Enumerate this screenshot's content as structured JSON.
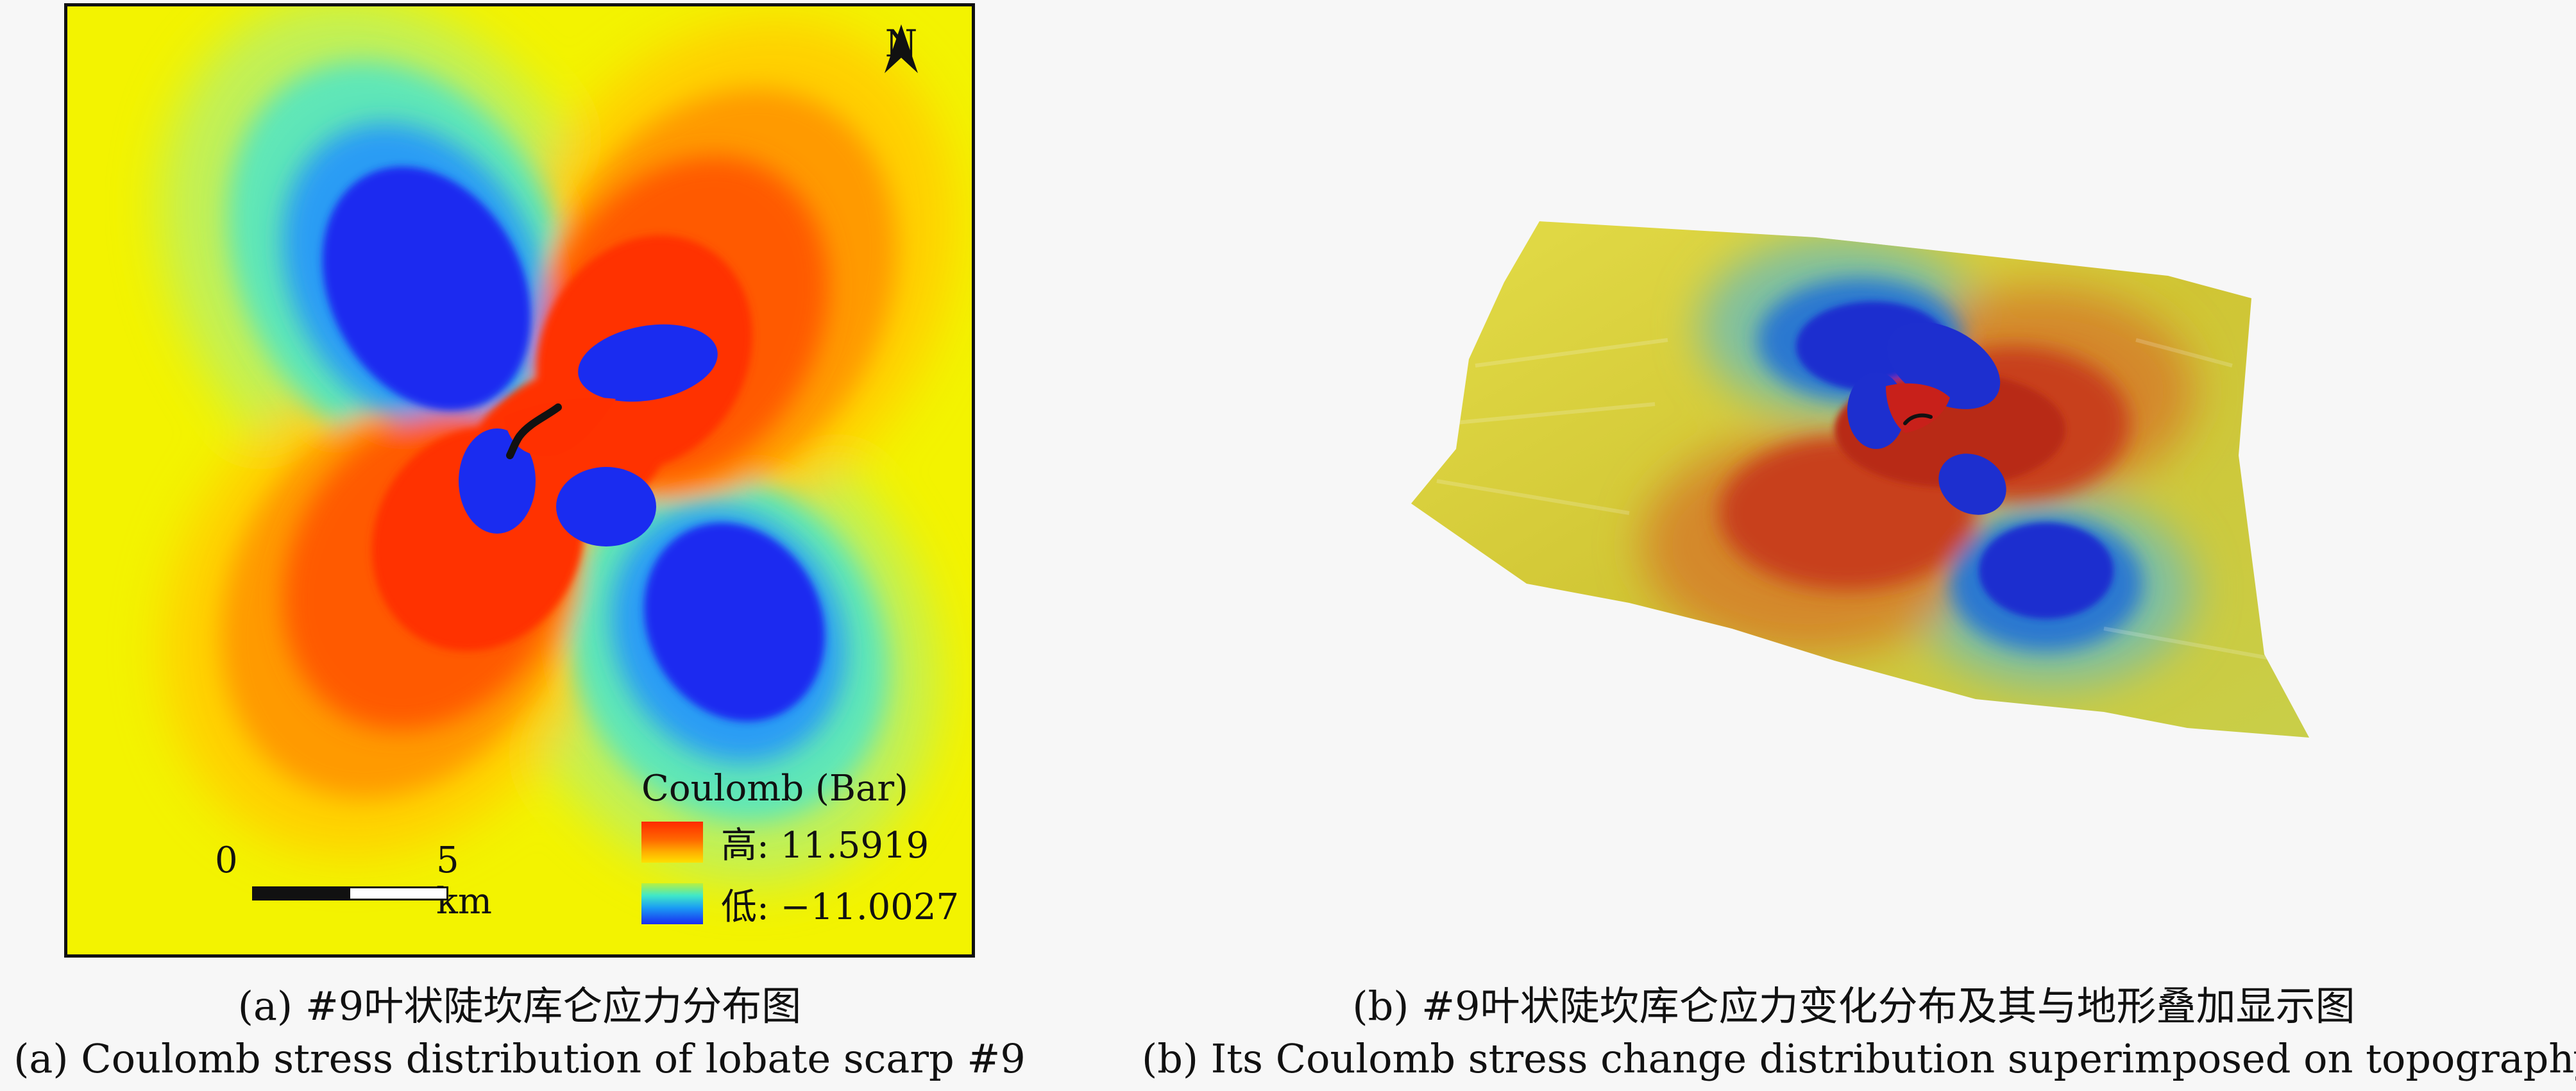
{
  "panel_a": {
    "north_label": "N",
    "legend": {
      "title": "Coulomb (Bar)",
      "high_label": "高: 11.5919",
      "low_label": "低: −11.0027"
    },
    "scalebar": {
      "start_label": "0",
      "end_label": "5 km"
    },
    "colors": {
      "background": "#f5f500",
      "high": "#ff3000",
      "mid_high": "#ff9a00",
      "mid_low": "#4de8c0",
      "low": "#1a2cf0"
    }
  },
  "panel_b": {
    "colors": {
      "background": "#d8cf3a",
      "high": "#c0281a",
      "low": "#1d2fcf"
    }
  },
  "captions": {
    "a_cn": "(a) #9叶状陡坎库仑应力分布图",
    "a_en": "(a) Coulomb stress distribution of lobate scarp #9",
    "b_cn": "(b) #9叶状陡坎库仑应力变化分布及其与地形叠加显示图",
    "b_en": "(b) Its Coulomb stress change distribution superimposed on topography"
  }
}
